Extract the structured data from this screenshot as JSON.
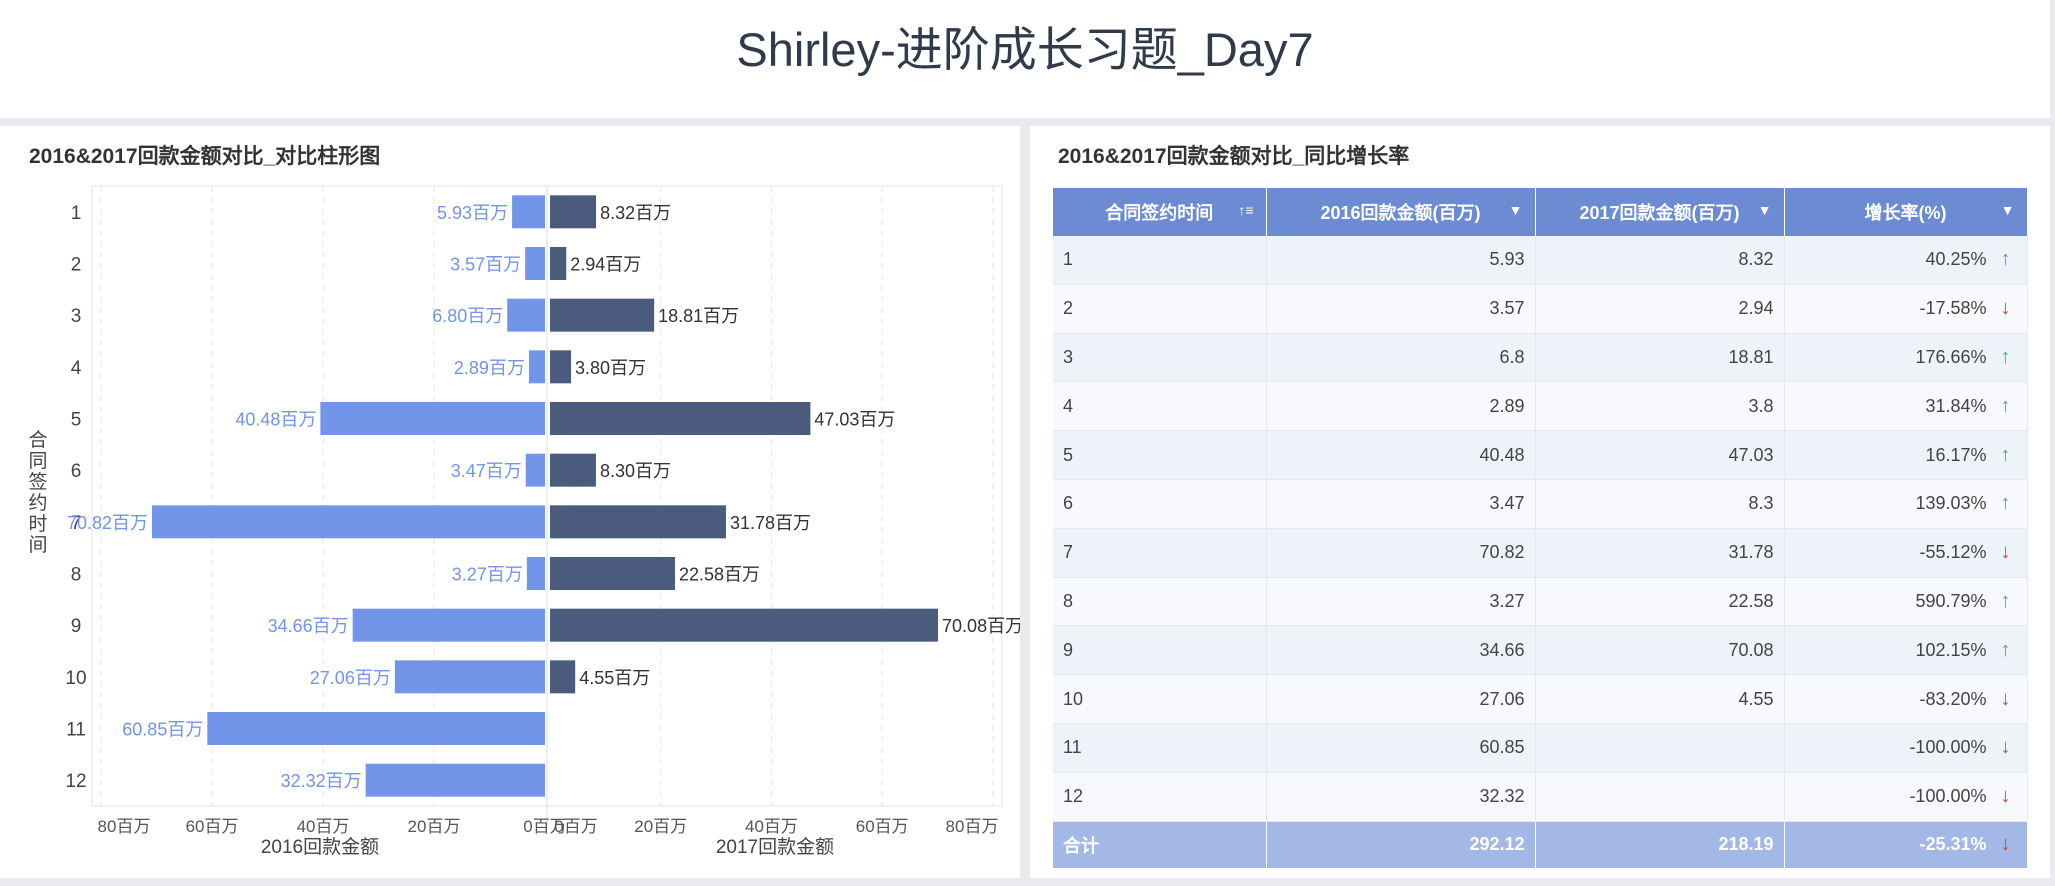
{
  "header": {
    "title": "Shirley-进阶成长习题_Day7"
  },
  "left_panel": {
    "title": "2016&2017回款金额对比_对比柱形图"
  },
  "right_panel": {
    "title": "2016&2017回款金额对比_同比增长率"
  },
  "chart_data": {
    "type": "bar",
    "orientation": "horizontal-butterfly",
    "title": "2016&2017回款金额对比_对比柱形图",
    "categories": [
      "1",
      "2",
      "3",
      "4",
      "5",
      "6",
      "7",
      "8",
      "9",
      "10",
      "11",
      "12"
    ],
    "ylabel": "合同签约时间",
    "value_suffix": "百万",
    "series": [
      {
        "name": "2016回款金额",
        "values": [
          5.93,
          3.57,
          6.8,
          2.89,
          40.48,
          3.47,
          70.82,
          3.27,
          34.66,
          27.06,
          60.85,
          32.32
        ],
        "color": "#7295ea"
      },
      {
        "name": "2017回款金额",
        "values": [
          8.32,
          2.94,
          18.81,
          3.8,
          47.03,
          8.3,
          31.78,
          22.58,
          70.08,
          4.55,
          null,
          null
        ],
        "color": "#4a5b7e"
      }
    ],
    "left_axis": {
      "label": "2016回款金额",
      "ticks": [
        "80百万",
        "60百万",
        "40百万",
        "20百万",
        "0百万"
      ],
      "xlim": [
        0,
        80
      ]
    },
    "right_axis": {
      "label": "2017回款金额",
      "ticks": [
        "0百万",
        "20百万",
        "40百万",
        "60百万",
        "80百万"
      ],
      "xlim": [
        0,
        80
      ]
    },
    "grid": true
  },
  "table": {
    "columns": [
      {
        "label": "合同签约时间",
        "icon": "sort-icon"
      },
      {
        "label": "2016回款金额(百万)",
        "icon": "dropdown-icon"
      },
      {
        "label": "2017回款金额(百万)",
        "icon": "dropdown-icon"
      },
      {
        "label": "增长率(%)",
        "icon": "dropdown-icon"
      }
    ],
    "rows": [
      {
        "month": "1",
        "v2016": "5.93",
        "v2017": "8.32",
        "rate": "40.25%",
        "trend": "up"
      },
      {
        "month": "2",
        "v2016": "3.57",
        "v2017": "2.94",
        "rate": "-17.58%",
        "trend": "down"
      },
      {
        "month": "3",
        "v2016": "6.8",
        "v2017": "18.81",
        "rate": "176.66%",
        "trend": "up"
      },
      {
        "month": "4",
        "v2016": "2.89",
        "v2017": "3.8",
        "rate": "31.84%",
        "trend": "up"
      },
      {
        "month": "5",
        "v2016": "40.48",
        "v2017": "47.03",
        "rate": "16.17%",
        "trend": "up"
      },
      {
        "month": "6",
        "v2016": "3.47",
        "v2017": "8.3",
        "rate": "139.03%",
        "trend": "up"
      },
      {
        "month": "7",
        "v2016": "70.82",
        "v2017": "31.78",
        "rate": "-55.12%",
        "trend": "down"
      },
      {
        "month": "8",
        "v2016": "3.27",
        "v2017": "22.58",
        "rate": "590.79%",
        "trend": "up"
      },
      {
        "month": "9",
        "v2016": "34.66",
        "v2017": "70.08",
        "rate": "102.15%",
        "trend": "up"
      },
      {
        "month": "10",
        "v2016": "27.06",
        "v2017": "4.55",
        "rate": "-83.20%",
        "trend": "down"
      },
      {
        "month": "11",
        "v2016": "60.85",
        "v2017": "",
        "rate": "-100.00%",
        "trend": "down"
      },
      {
        "month": "12",
        "v2016": "32.32",
        "v2017": "",
        "rate": "-100.00%",
        "trend": "down"
      }
    ],
    "total": {
      "label": "合计",
      "v2016": "292.12",
      "v2017": "218.19",
      "rate": "-25.31%",
      "trend": "down"
    },
    "colors": {
      "header": "#6d8bd3",
      "up": "#3cb371",
      "down": "#e03b3b",
      "total": "#a3b8e6"
    }
  }
}
